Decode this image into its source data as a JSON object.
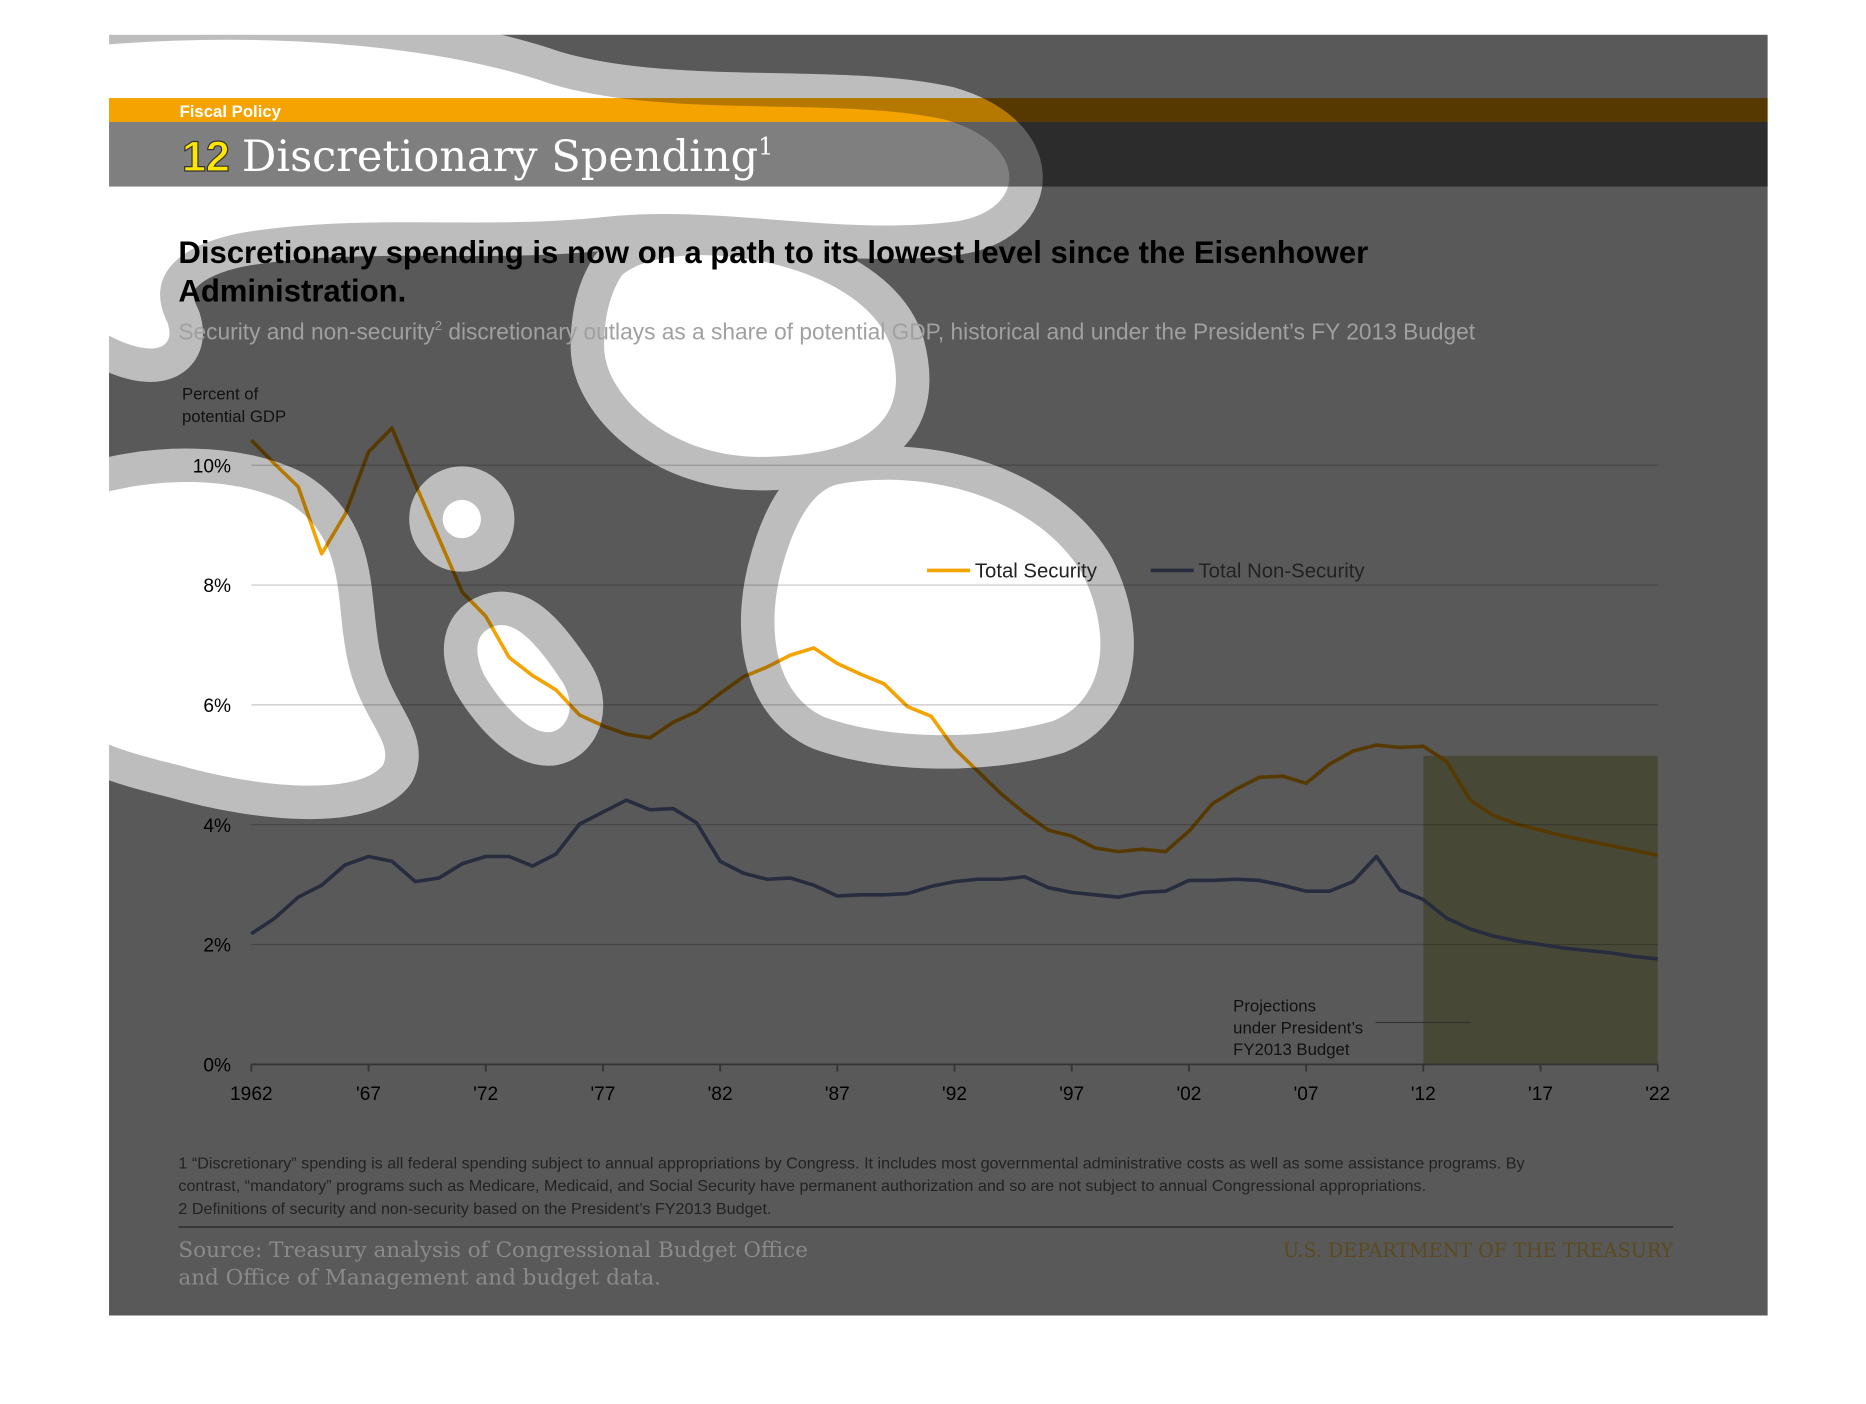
{
  "header": {
    "section": "Fiscal Policy",
    "number": "12",
    "title": "Discretionary Spending",
    "title_sup": "1"
  },
  "chart_data": {
    "type": "line",
    "title_lines": [
      "Discretionary spending is now on a path to its lowest level since the Eisenhower",
      "Administration."
    ],
    "subtitle": "Security and non-security",
    "subtitle_sup": "2",
    "subtitle_rest": " discretionary outlays as a share of potential GDP, historical and under the President’s FY 2013 Budget",
    "y_label_lines": [
      "Percent of",
      "potential GDP"
    ],
    "x": [
      1962,
      1963,
      1964,
      1965,
      1966,
      1967,
      1968,
      1969,
      1970,
      1971,
      1972,
      1973,
      1974,
      1975,
      1976,
      1977,
      1978,
      1979,
      1980,
      1981,
      1982,
      1983,
      1984,
      1985,
      1986,
      1987,
      1988,
      1989,
      1990,
      1991,
      1992,
      1993,
      1994,
      1995,
      1996,
      1997,
      1998,
      1999,
      2000,
      2001,
      2002,
      2003,
      2004,
      2005,
      2006,
      2007,
      2008,
      2009,
      2010,
      2011,
      2012,
      2013,
      2014,
      2015,
      2016,
      2017,
      2018,
      2019,
      2020,
      2021,
      2022
    ],
    "series": [
      {
        "name": "Total Security",
        "color": "#f4a300",
        "values": [
          10.42,
          10.02,
          9.64,
          8.52,
          9.18,
          10.22,
          10.62,
          9.68,
          8.78,
          7.88,
          7.48,
          6.79,
          6.49,
          6.25,
          5.83,
          5.65,
          5.51,
          5.45,
          5.71,
          5.89,
          6.19,
          6.47,
          6.63,
          6.83,
          6.95,
          6.69,
          6.51,
          6.35,
          5.97,
          5.81,
          5.27,
          4.89,
          4.51,
          4.19,
          3.91,
          3.81,
          3.61,
          3.55,
          3.59,
          3.55,
          3.89,
          4.35,
          4.59,
          4.79,
          4.81,
          4.69,
          5.01,
          5.23,
          5.33,
          5.29,
          5.31,
          5.05,
          4.41,
          4.15,
          4.01,
          3.91,
          3.81,
          3.73,
          3.65,
          3.57,
          3.49
        ]
      },
      {
        "name": "Total Non-Security",
        "color": "#272c3e",
        "values": [
          2.18,
          2.44,
          2.79,
          2.99,
          3.33,
          3.47,
          3.39,
          3.05,
          3.11,
          3.35,
          3.47,
          3.47,
          3.31,
          3.51,
          4.01,
          4.21,
          4.41,
          4.25,
          4.27,
          4.03,
          3.39,
          3.19,
          3.09,
          3.11,
          2.99,
          2.81,
          2.83,
          2.83,
          2.85,
          2.97,
          3.05,
          3.09,
          3.09,
          3.13,
          2.95,
          2.87,
          2.83,
          2.79,
          2.87,
          2.89,
          3.07,
          3.07,
          3.09,
          3.07,
          2.99,
          2.89,
          2.89,
          3.05,
          3.47,
          2.91,
          2.75,
          2.44,
          2.26,
          2.14,
          2.06,
          2.0,
          1.94,
          1.9,
          1.86,
          1.8,
          1.76
        ]
      }
    ],
    "xlim": [
      1962,
      2022
    ],
    "xticks": [
      1962,
      {
        "value": 1967,
        "label": "'67"
      },
      {
        "value": 1972,
        "label": "'72"
      },
      {
        "value": 1977,
        "label": "'77"
      },
      {
        "value": 1982,
        "label": "'82"
      },
      {
        "value": 1987,
        "label": "'87"
      },
      {
        "value": 1992,
        "label": "'92"
      },
      {
        "value": 1997,
        "label": "'97"
      },
      {
        "value": 2002,
        "label": "'02"
      },
      {
        "value": 2007,
        "label": "'07"
      },
      {
        "value": 2012,
        "label": "'12"
      },
      {
        "value": 2017,
        "label": "'17"
      },
      {
        "value": 2022,
        "label": "'22"
      }
    ],
    "ylim": [
      0,
      10
    ],
    "yticks": [
      {
        "value": 0,
        "label": "0%"
      },
      {
        "value": 2,
        "label": "2%"
      },
      {
        "value": 4,
        "label": "4%"
      },
      {
        "value": 6,
        "label": "6%"
      },
      {
        "value": 8,
        "label": "8%"
      },
      {
        "value": 10,
        "label": "10%"
      }
    ],
    "grid": true,
    "shaded_region": {
      "x": [
        2012,
        2022
      ],
      "y": [
        0,
        5.15
      ],
      "color": "#cfcf9e",
      "label_lines": [
        "Projections",
        "under President’s",
        "FY2013 Budget"
      ]
    }
  },
  "footnotes": [
    "1 “Discretionary” spending is all federal spending subject to annual appropriations by Congress. It includes most governmental administrative costs as well as some assistance programs. By",
    "contrast, “mandatory” programs such as Medicare, Medicaid, and Social Security have permanent authorization and so are not subject to annual Congressional appropriations.",
    "2 Definitions of security and non-security based on the President’s FY2013 Budget."
  ],
  "source_lines": [
    "Source: Treasury analysis of Congressional Budget Office",
    "and Office of Management and budget data."
  ],
  "agency": "U.S. DEPARTMENT OF THE TREASURY"
}
